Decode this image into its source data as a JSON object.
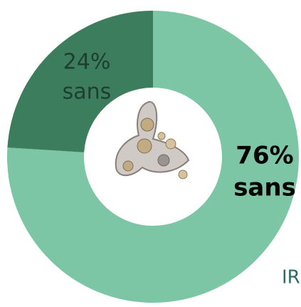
{
  "chart_data": {
    "type": "donut",
    "categories": [
      "sans",
      "sans"
    ],
    "values": [
      76,
      24
    ],
    "value_labels": [
      "76%",
      "24%"
    ],
    "colors": [
      "#7cc6a6",
      "#3c7d5e"
    ],
    "annotations": [
      "IR"
    ]
  }
}
